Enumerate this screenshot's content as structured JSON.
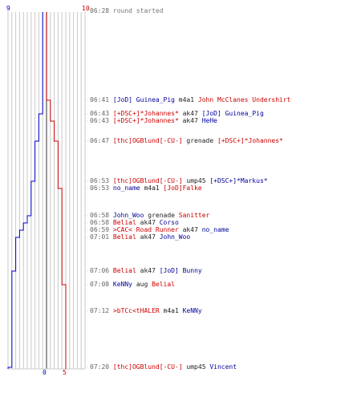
{
  "colors": {
    "blue": "#0000cc",
    "red": "#cc0000",
    "grid": "#c8c8c8",
    "center": "#555555",
    "event_line": "#d0d0d0"
  },
  "scale": {
    "blue_top": "9",
    "red_top": "10",
    "blue_bottom": "0",
    "red_bottom": "5"
  },
  "chart_data": {
    "type": "line",
    "series": [
      {
        "team": "blue",
        "start": 9,
        "steps": [
          8,
          7,
          6,
          5,
          4,
          3,
          2,
          1,
          0
        ]
      },
      {
        "team": "red",
        "start": 10,
        "steps": [
          9,
          8,
          7,
          6,
          5
        ]
      }
    ]
  },
  "events": [
    {
      "time": "06:28",
      "parts": [
        {
          "text": "round started",
          "c": "g"
        }
      ]
    },
    {
      "time": "06:41",
      "parts": [
        {
          "text": "[JoD] Guinea_Pig",
          "c": "b"
        },
        {
          "text": " m4a1 ",
          "c": "k"
        },
        {
          "text": "John McClanes Undershirt",
          "c": "r"
        }
      ]
    },
    {
      "time": "06:43",
      "parts": [
        {
          "text": "[+DSC+]*Johannes*",
          "c": "r"
        },
        {
          "text": " ak47 ",
          "c": "k"
        },
        {
          "text": "[JoD] Guinea_Pig",
          "c": "b"
        }
      ]
    },
    {
      "time": "06:43",
      "parts": [
        {
          "text": "[+DSC+]*Johannes*",
          "c": "r"
        },
        {
          "text": " ak47 ",
          "c": "k"
        },
        {
          "text": "HeHe",
          "c": "b"
        }
      ]
    },
    {
      "time": "06:47",
      "parts": [
        {
          "text": "[thc]OGBlund[-CU-]",
          "c": "r"
        },
        {
          "text": " grenade ",
          "c": "k"
        },
        {
          "text": "[+DSC+]*Johannes*",
          "c": "r"
        }
      ]
    },
    {
      "time": "06:53",
      "parts": [
        {
          "text": "[thc]OGBlund[-CU-]",
          "c": "r"
        },
        {
          "text": " ump45 ",
          "c": "k"
        },
        {
          "text": "[+DSC+]*Markus*",
          "c": "b"
        }
      ]
    },
    {
      "time": "06:53",
      "parts": [
        {
          "text": "no_name",
          "c": "b"
        },
        {
          "text": " m4a1 ",
          "c": "k"
        },
        {
          "text": "[JoD]Falke",
          "c": "r"
        }
      ]
    },
    {
      "time": "06:58",
      "parts": [
        {
          "text": "John_Woo",
          "c": "b"
        },
        {
          "text": " grenade ",
          "c": "k"
        },
        {
          "text": "Sanitter",
          "c": "r"
        }
      ]
    },
    {
      "time": "06:58",
      "parts": [
        {
          "text": "Belial",
          "c": "r"
        },
        {
          "text": " ak47 ",
          "c": "k"
        },
        {
          "text": "Corso",
          "c": "b"
        }
      ]
    },
    {
      "time": "06:59",
      "parts": [
        {
          "text": ">CAC< Road Runner",
          "c": "r"
        },
        {
          "text": " ak47 ",
          "c": "k"
        },
        {
          "text": "no_name",
          "c": "b"
        }
      ]
    },
    {
      "time": "07:01",
      "parts": [
        {
          "text": "Belial",
          "c": "r"
        },
        {
          "text": " ak47 ",
          "c": "k"
        },
        {
          "text": "John_Woo",
          "c": "b"
        }
      ]
    },
    {
      "time": "07:06",
      "parts": [
        {
          "text": "Belial",
          "c": "r"
        },
        {
          "text": " ak47 ",
          "c": "k"
        },
        {
          "text": "[JoD] Bunny",
          "c": "b"
        }
      ]
    },
    {
      "time": "07:08",
      "parts": [
        {
          "text": "KeNNy",
          "c": "b"
        },
        {
          "text": " aug ",
          "c": "k"
        },
        {
          "text": "Belial",
          "c": "r"
        }
      ]
    },
    {
      "time": "07:12",
      "parts": [
        {
          "text": ">bTCc<tHALER",
          "c": "r"
        },
        {
          "text": " m4a1 ",
          "c": "k"
        },
        {
          "text": "KeNNy",
          "c": "b"
        }
      ]
    },
    {
      "time": "07:20",
      "parts": [
        {
          "text": "[thc]OGBlund[-CU-]",
          "c": "r"
        },
        {
          "text": " ump45 ",
          "c": "k"
        },
        {
          "text": "Vincent",
          "c": "b"
        }
      ]
    }
  ]
}
